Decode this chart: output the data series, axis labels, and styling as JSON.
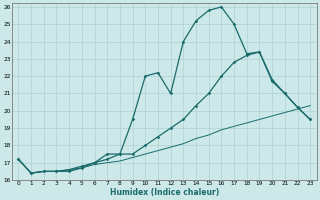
{
  "xlabel": "Humidex (Indice chaleur)",
  "xlim": [
    -0.5,
    23.5
  ],
  "ylim": [
    16,
    26.2
  ],
  "yticks": [
    16,
    17,
    18,
    19,
    20,
    21,
    22,
    23,
    24,
    25,
    26
  ],
  "xticks": [
    0,
    1,
    2,
    3,
    4,
    5,
    6,
    7,
    8,
    9,
    10,
    11,
    12,
    13,
    14,
    15,
    16,
    17,
    18,
    19,
    20,
    21,
    22,
    23
  ],
  "background_color": "#cde8e8",
  "grid_color": "#a8cccc",
  "line_color": "#1a6b6b",
  "line1_x": [
    0,
    1,
    2,
    3,
    4,
    5,
    6,
    7,
    8,
    9,
    10,
    11,
    12,
    13,
    14,
    15,
    16,
    17,
    18,
    19,
    20,
    21,
    22,
    23
  ],
  "line1_y": [
    17.2,
    16.4,
    16.5,
    16.5,
    16.5,
    16.7,
    17.0,
    17.5,
    17.5,
    19.5,
    22.0,
    22.2,
    21.0,
    24.0,
    25.2,
    25.8,
    26.0,
    25.0,
    23.3,
    23.4,
    21.7,
    21.0,
    20.2,
    19.5
  ],
  "line2_x": [
    0,
    1,
    2,
    3,
    4,
    5,
    6,
    7,
    8,
    9,
    10,
    11,
    12,
    13,
    14,
    15,
    16,
    17,
    18,
    19,
    20,
    21,
    22,
    23
  ],
  "line2_y": [
    17.2,
    16.4,
    16.5,
    16.5,
    16.6,
    16.8,
    17.0,
    17.2,
    17.5,
    17.5,
    18.0,
    18.5,
    19.0,
    19.5,
    20.3,
    21.0,
    22.0,
    22.8,
    23.2,
    23.4,
    21.8,
    21.0,
    20.2,
    19.5
  ],
  "line3_x": [
    0,
    1,
    2,
    3,
    4,
    5,
    6,
    7,
    8,
    9,
    10,
    11,
    12,
    13,
    14,
    15,
    16,
    17,
    18,
    19,
    20,
    21,
    22,
    23
  ],
  "line3_y": [
    17.2,
    16.4,
    16.5,
    16.5,
    16.6,
    16.7,
    16.9,
    17.0,
    17.1,
    17.3,
    17.5,
    17.7,
    17.9,
    18.1,
    18.4,
    18.6,
    18.9,
    19.1,
    19.3,
    19.5,
    19.7,
    19.9,
    20.1,
    20.3
  ]
}
